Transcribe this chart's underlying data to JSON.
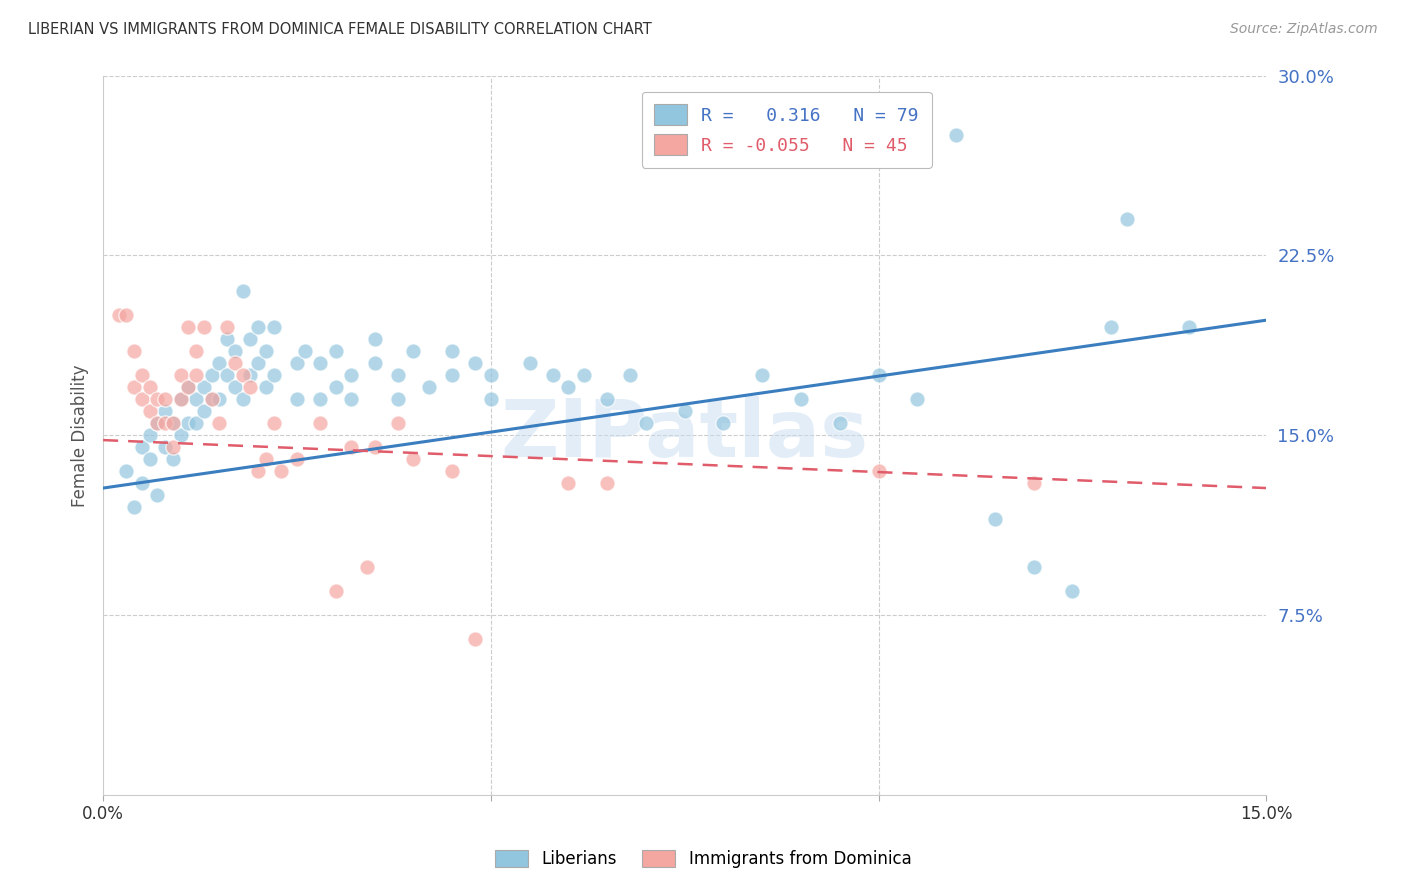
{
  "title": "LIBERIAN VS IMMIGRANTS FROM DOMINICA FEMALE DISABILITY CORRELATION CHART",
  "source": "Source: ZipAtlas.com",
  "ylabel": "Female Disability",
  "xmin": 0.0,
  "xmax": 0.15,
  "ymin": 0.0,
  "ymax": 0.3,
  "yticks": [
    0.0,
    0.075,
    0.15,
    0.225,
    0.3
  ],
  "ytick_labels": [
    "",
    "7.5%",
    "15.0%",
    "22.5%",
    "30.0%"
  ],
  "xticks": [
    0.0,
    0.05,
    0.1,
    0.15
  ],
  "xtick_labels": [
    "0.0%",
    "",
    "",
    "15.0%"
  ],
  "legend_blue_r": "0.316",
  "legend_blue_n": "79",
  "legend_pink_r": "-0.055",
  "legend_pink_n": "45",
  "blue_color": "#92c5de",
  "pink_color": "#f4a6a0",
  "line_blue": "#3a7ebf",
  "line_pink": "#e05c6a",
  "watermark": "ZIPatlas",
  "blue_scatter": [
    [
      0.003,
      0.135
    ],
    [
      0.004,
      0.12
    ],
    [
      0.005,
      0.145
    ],
    [
      0.005,
      0.13
    ],
    [
      0.006,
      0.15
    ],
    [
      0.006,
      0.14
    ],
    [
      0.007,
      0.155
    ],
    [
      0.007,
      0.125
    ],
    [
      0.008,
      0.16
    ],
    [
      0.008,
      0.145
    ],
    [
      0.009,
      0.155
    ],
    [
      0.009,
      0.14
    ],
    [
      0.01,
      0.165
    ],
    [
      0.01,
      0.15
    ],
    [
      0.011,
      0.17
    ],
    [
      0.011,
      0.155
    ],
    [
      0.012,
      0.165
    ],
    [
      0.012,
      0.155
    ],
    [
      0.013,
      0.17
    ],
    [
      0.013,
      0.16
    ],
    [
      0.014,
      0.175
    ],
    [
      0.014,
      0.165
    ],
    [
      0.015,
      0.18
    ],
    [
      0.015,
      0.165
    ],
    [
      0.016,
      0.19
    ],
    [
      0.016,
      0.175
    ],
    [
      0.017,
      0.185
    ],
    [
      0.017,
      0.17
    ],
    [
      0.018,
      0.21
    ],
    [
      0.018,
      0.165
    ],
    [
      0.019,
      0.19
    ],
    [
      0.019,
      0.175
    ],
    [
      0.02,
      0.195
    ],
    [
      0.02,
      0.18
    ],
    [
      0.021,
      0.185
    ],
    [
      0.021,
      0.17
    ],
    [
      0.022,
      0.175
    ],
    [
      0.022,
      0.195
    ],
    [
      0.025,
      0.18
    ],
    [
      0.025,
      0.165
    ],
    [
      0.026,
      0.185
    ],
    [
      0.028,
      0.165
    ],
    [
      0.028,
      0.18
    ],
    [
      0.03,
      0.17
    ],
    [
      0.03,
      0.185
    ],
    [
      0.032,
      0.175
    ],
    [
      0.032,
      0.165
    ],
    [
      0.035,
      0.18
    ],
    [
      0.035,
      0.19
    ],
    [
      0.038,
      0.175
    ],
    [
      0.038,
      0.165
    ],
    [
      0.04,
      0.185
    ],
    [
      0.042,
      0.17
    ],
    [
      0.045,
      0.175
    ],
    [
      0.045,
      0.185
    ],
    [
      0.048,
      0.18
    ],
    [
      0.05,
      0.165
    ],
    [
      0.05,
      0.175
    ],
    [
      0.055,
      0.18
    ],
    [
      0.058,
      0.175
    ],
    [
      0.06,
      0.17
    ],
    [
      0.062,
      0.175
    ],
    [
      0.065,
      0.165
    ],
    [
      0.068,
      0.175
    ],
    [
      0.07,
      0.155
    ],
    [
      0.075,
      0.16
    ],
    [
      0.08,
      0.155
    ],
    [
      0.085,
      0.175
    ],
    [
      0.09,
      0.165
    ],
    [
      0.095,
      0.155
    ],
    [
      0.1,
      0.175
    ],
    [
      0.105,
      0.165
    ],
    [
      0.11,
      0.275
    ],
    [
      0.115,
      0.115
    ],
    [
      0.12,
      0.095
    ],
    [
      0.125,
      0.085
    ],
    [
      0.13,
      0.195
    ],
    [
      0.132,
      0.24
    ],
    [
      0.14,
      0.195
    ]
  ],
  "pink_scatter": [
    [
      0.002,
      0.2
    ],
    [
      0.003,
      0.2
    ],
    [
      0.004,
      0.185
    ],
    [
      0.004,
      0.17
    ],
    [
      0.005,
      0.175
    ],
    [
      0.005,
      0.165
    ],
    [
      0.006,
      0.17
    ],
    [
      0.006,
      0.16
    ],
    [
      0.007,
      0.165
    ],
    [
      0.007,
      0.155
    ],
    [
      0.008,
      0.165
    ],
    [
      0.008,
      0.155
    ],
    [
      0.009,
      0.155
    ],
    [
      0.009,
      0.145
    ],
    [
      0.01,
      0.175
    ],
    [
      0.01,
      0.165
    ],
    [
      0.011,
      0.17
    ],
    [
      0.011,
      0.195
    ],
    [
      0.012,
      0.185
    ],
    [
      0.012,
      0.175
    ],
    [
      0.013,
      0.195
    ],
    [
      0.014,
      0.165
    ],
    [
      0.015,
      0.155
    ],
    [
      0.016,
      0.195
    ],
    [
      0.017,
      0.18
    ],
    [
      0.018,
      0.175
    ],
    [
      0.019,
      0.17
    ],
    [
      0.02,
      0.135
    ],
    [
      0.021,
      0.14
    ],
    [
      0.022,
      0.155
    ],
    [
      0.023,
      0.135
    ],
    [
      0.025,
      0.14
    ],
    [
      0.028,
      0.155
    ],
    [
      0.03,
      0.085
    ],
    [
      0.032,
      0.145
    ],
    [
      0.034,
      0.095
    ],
    [
      0.035,
      0.145
    ],
    [
      0.038,
      0.155
    ],
    [
      0.04,
      0.14
    ],
    [
      0.045,
      0.135
    ],
    [
      0.048,
      0.065
    ],
    [
      0.06,
      0.13
    ],
    [
      0.065,
      0.13
    ],
    [
      0.1,
      0.135
    ],
    [
      0.12,
      0.13
    ]
  ],
  "blue_line_x": [
    0.0,
    0.15
  ],
  "blue_line_y": [
    0.128,
    0.198
  ],
  "pink_line_x": [
    0.0,
    0.15
  ],
  "pink_line_y": [
    0.148,
    0.128
  ],
  "background_color": "#ffffff",
  "grid_color": "#cccccc"
}
